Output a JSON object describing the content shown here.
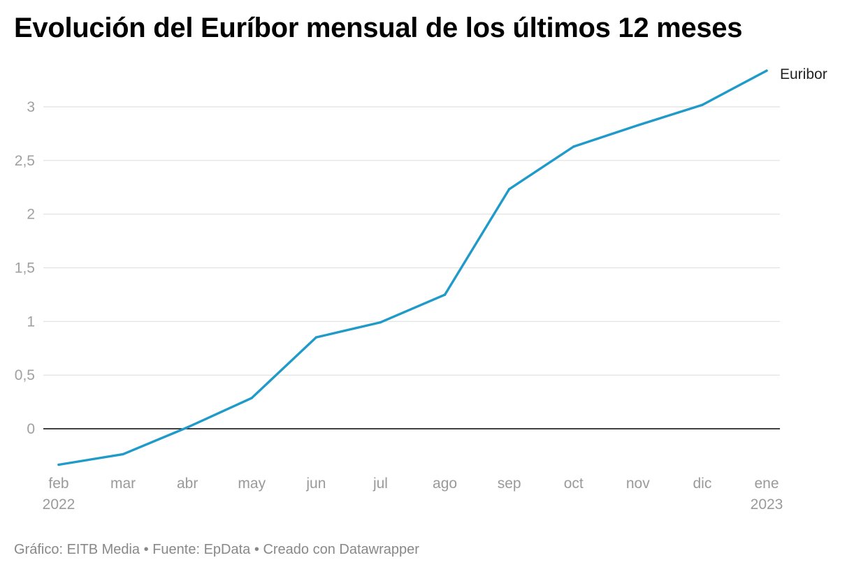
{
  "title": "Evolución del Euríbor mensual de los últimos 12 meses",
  "footer": {
    "credit": "Gráfico: EITB Media",
    "source": "Fuente: EpData",
    "tool": "Creado con Datawrapper",
    "separator": "•"
  },
  "chart_data": {
    "type": "line",
    "title": "Evolución del Euríbor mensual de los últimos 12 meses",
    "xlabel": "",
    "ylabel": "",
    "categories": [
      "feb",
      "mar",
      "abr",
      "may",
      "jun",
      "jul",
      "ago",
      "sep",
      "oct",
      "nov",
      "dic",
      "ene"
    ],
    "category_years": [
      "2022",
      "",
      "",
      "",
      "",
      "",
      "",
      "",
      "",
      "",
      "",
      "2023"
    ],
    "series": [
      {
        "name": "Euribor",
        "color": "#1f9ac9",
        "values": [
          -0.335,
          -0.237,
          0.013,
          0.287,
          0.852,
          0.992,
          1.249,
          2.233,
          2.629,
          2.828,
          3.018,
          3.337
        ]
      }
    ],
    "ylim": [
      -0.35,
      3.35
    ],
    "yticks": [
      0,
      0.5,
      1,
      1.5,
      2,
      2.5,
      3
    ],
    "ytick_labels": [
      "0",
      "0,5",
      "1",
      "1,5",
      "2",
      "2,5",
      "3"
    ],
    "grid": true,
    "legend": "direct-label-right"
  }
}
